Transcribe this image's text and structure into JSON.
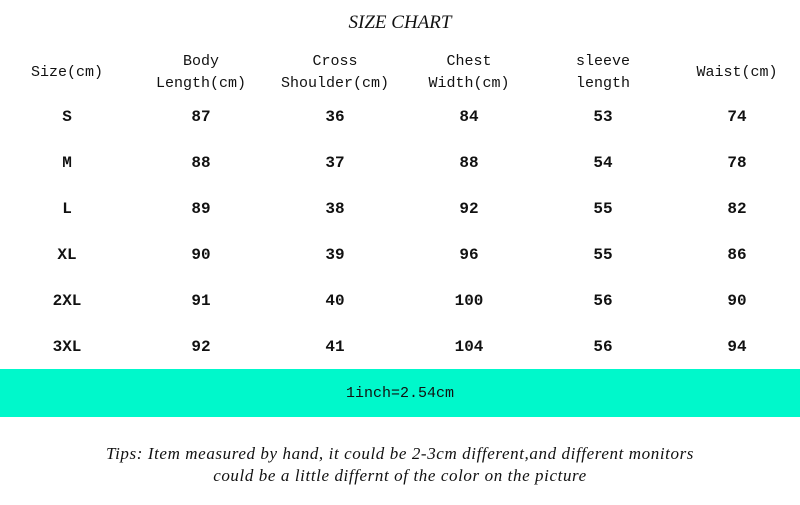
{
  "title": "SIZE CHART",
  "band_color": "#00F8CB",
  "headers": [
    "Size(cm)",
    "Body\nLength(cm)",
    "Cross\nShoulder(cm)",
    "Chest\nWidth(cm)",
    "sleeve\nlength",
    "Waist(cm)"
  ],
  "rows": [
    [
      "S",
      "87",
      "36",
      "84",
      "53",
      "74"
    ],
    [
      "M",
      "88",
      "37",
      "88",
      "54",
      "78"
    ],
    [
      "L",
      "89",
      "38",
      "92",
      "55",
      "82"
    ],
    [
      "XL",
      "90",
      "39",
      "96",
      "55",
      "86"
    ],
    [
      "2XL",
      "91",
      "40",
      "100",
      "56",
      "90"
    ],
    [
      "3XL",
      "92",
      "41",
      "104",
      "56",
      "94"
    ]
  ],
  "conversion": "1inch=2.54cm",
  "tips_line1": "Tips: Item measured by hand, it could be 2-3cm different,and different monitors",
  "tips_line2": "could be a little differnt of the color on the picture"
}
